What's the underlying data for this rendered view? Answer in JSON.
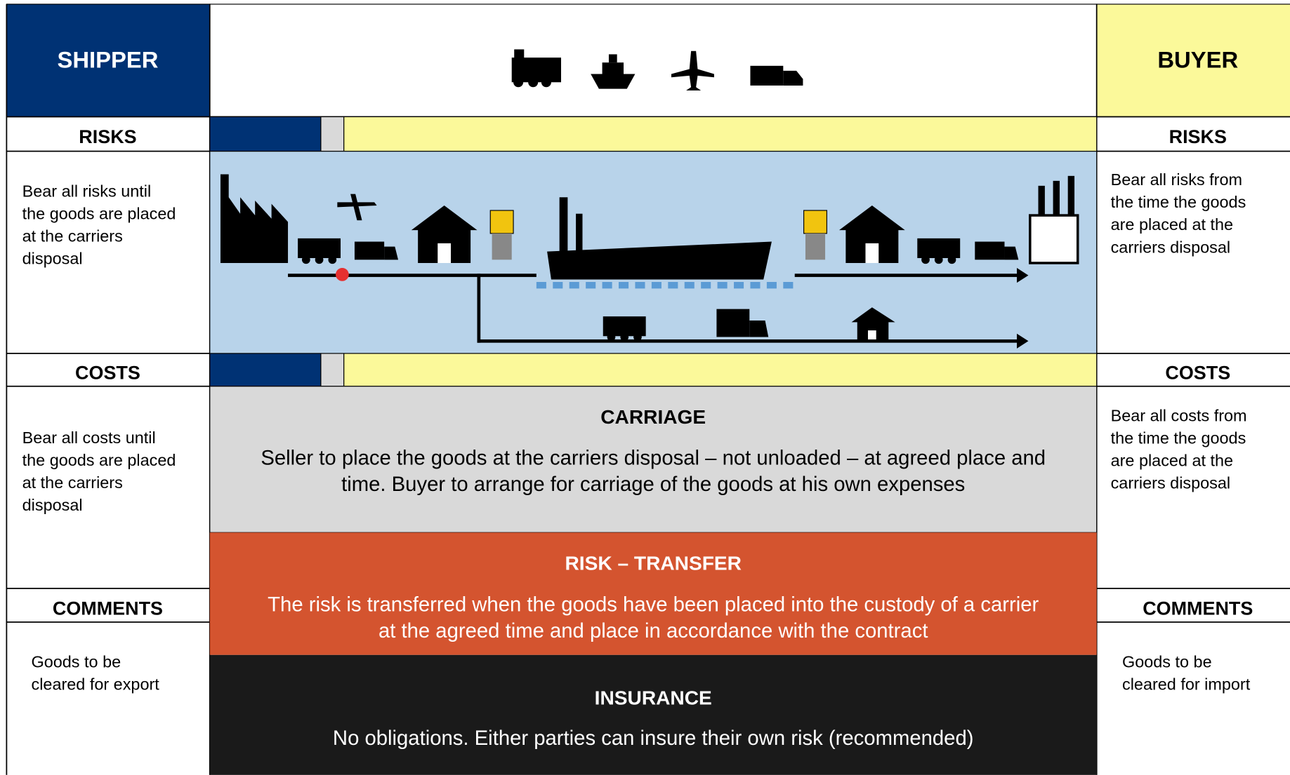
{
  "shipper": {
    "title": "SHIPPER",
    "risks_label": "RISKS",
    "risks_text": [
      "Bear all risks until",
      "the goods are placed",
      "at the carriers",
      "disposal"
    ],
    "costs_label": "COSTS",
    "costs_text": [
      "Bear all costs until",
      "the goods are placed",
      "at the carriers",
      "disposal"
    ],
    "comments_label": "COMMENTS",
    "comments_text": [
      "Goods to be",
      "cleared for export"
    ]
  },
  "buyer": {
    "title": "BUYER",
    "risks_label": "RISKS",
    "risks_text": [
      "Bear all risks from",
      "the time the goods",
      "are placed at the",
      "carriers disposal"
    ],
    "costs_label": "COSTS",
    "costs_text": [
      "Bear all costs from",
      "the time the goods",
      "are placed at the",
      "carriers disposal"
    ],
    "comments_label": "COMMENTS",
    "comments_text": [
      "Goods to be",
      "cleared for import"
    ]
  },
  "carriage": {
    "title": "CARRIAGE",
    "text": [
      "Seller to place the goods at the carriers disposal – not unloaded – at agreed place and",
      "time. Buyer to arrange for carriage of the goods at his own expenses"
    ]
  },
  "risk_transfer": {
    "title": "RISK – TRANSFER",
    "text": [
      "The risk is transferred when the goods have been placed into the custody of a carrier",
      "at the agreed time and place in accordance with the contract"
    ]
  },
  "insurance": {
    "title": "INSURANCE",
    "text": [
      "No obligations.  Either parties can insure their own risk (recommended)"
    ]
  }
}
